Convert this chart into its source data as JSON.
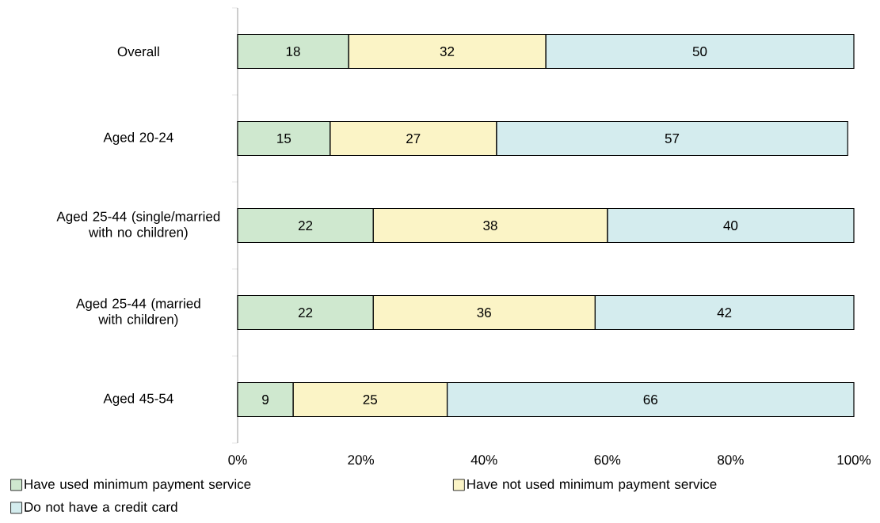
{
  "chart_data": {
    "type": "bar",
    "orientation": "horizontal",
    "stacked": true,
    "data_labels": true,
    "legend": "bottom",
    "grid": false,
    "categories": [
      "Overall",
      "Aged 20-24",
      "Aged 25-44 (single/married with no children)",
      "Aged 25-44 (married with children)",
      "Aged 45-54"
    ],
    "series": [
      {
        "name": "Have used minimum payment service",
        "color": "#cfe8cf",
        "values": [
          18,
          15,
          22,
          22,
          9
        ]
      },
      {
        "name": "Have not used minimum payment service",
        "color": "#fbf4c6",
        "values": [
          32,
          27,
          38,
          36,
          25
        ]
      },
      {
        "name": "Do not have a credit card",
        "color": "#d4ecee",
        "values": [
          50,
          57,
          40,
          42,
          66
        ]
      }
    ],
    "xlim": [
      0,
      100
    ],
    "xticks": [
      {
        "value": 0,
        "label": "0%"
      },
      {
        "value": 20,
        "label": "20%"
      },
      {
        "value": 40,
        "label": "40%"
      },
      {
        "value": 60,
        "label": "60%"
      },
      {
        "value": 80,
        "label": "80%"
      },
      {
        "value": 100,
        "label": "100%"
      }
    ]
  }
}
